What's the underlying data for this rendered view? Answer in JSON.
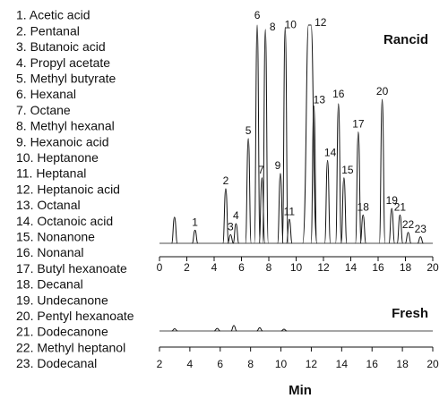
{
  "compounds": [
    "1. Acetic acid",
    "2. Pentanal",
    "3. Butanoic acid",
    "4. Propyl acetate",
    "5. Methyl butyrate",
    "6. Hexanal",
    "7. Octane",
    "8. Methyl hexanal",
    "9. Hexanoic acid",
    "10. Heptanone",
    "11. Heptanal",
    "12. Heptanoic acid",
    "13. Octanal",
    "14. Octanoic acid",
    "15. Nonanone",
    "16. Nonanal",
    "17. Butyl hexanoate",
    "18. Decanal",
    "19. Undecanone",
    "20. Pentyl hexanoate",
    "21. Dodecanone",
    "22. Methyl heptanol",
    "23. Dodecanal"
  ],
  "chart_data": [
    {
      "type": "chromatogram",
      "title": "Rancid",
      "color": "#111111",
      "x": [
        1.1,
        2.6,
        4.85,
        5.2,
        5.6,
        6.5,
        7.15,
        7.5,
        7.75,
        8.85,
        9.2,
        9.5,
        11.0,
        11.3,
        12.3,
        13.5,
        13.1,
        14.55,
        14.9,
        17.0,
        16.3,
        17.6,
        18.2,
        19.1
      ],
      "values": [
        12,
        6,
        25,
        4,
        9,
        48,
        100,
        30,
        98,
        32,
        99,
        11,
        100,
        63,
        38,
        30,
        64,
        51,
        13,
        16,
        66,
        13,
        5,
        3
      ],
      "peak_labels": [
        null,
        1,
        2,
        3,
        4,
        5,
        6,
        7,
        8,
        9,
        10,
        11,
        12,
        13,
        14,
        15,
        16,
        17,
        18,
        19,
        20,
        21,
        22,
        23
      ],
      "xlim": [
        0,
        20
      ],
      "xticks": [
        0,
        2,
        4,
        6,
        8,
        10,
        12,
        14,
        16,
        18,
        20
      ],
      "ylim": [
        0,
        100
      ]
    },
    {
      "type": "chromatogram",
      "title": "Fresh",
      "color": "#111111",
      "x": [
        3.0,
        5.8,
        6.9,
        8.6,
        10.2
      ],
      "values": [
        1,
        1.2,
        2.5,
        1.5,
        0.8
      ],
      "xlim": [
        2,
        20
      ],
      "xticks": [
        2,
        4,
        6,
        8,
        10,
        12,
        14,
        16,
        18,
        20
      ],
      "ylim": [
        0,
        100
      ],
      "x_label": "Min"
    }
  ]
}
